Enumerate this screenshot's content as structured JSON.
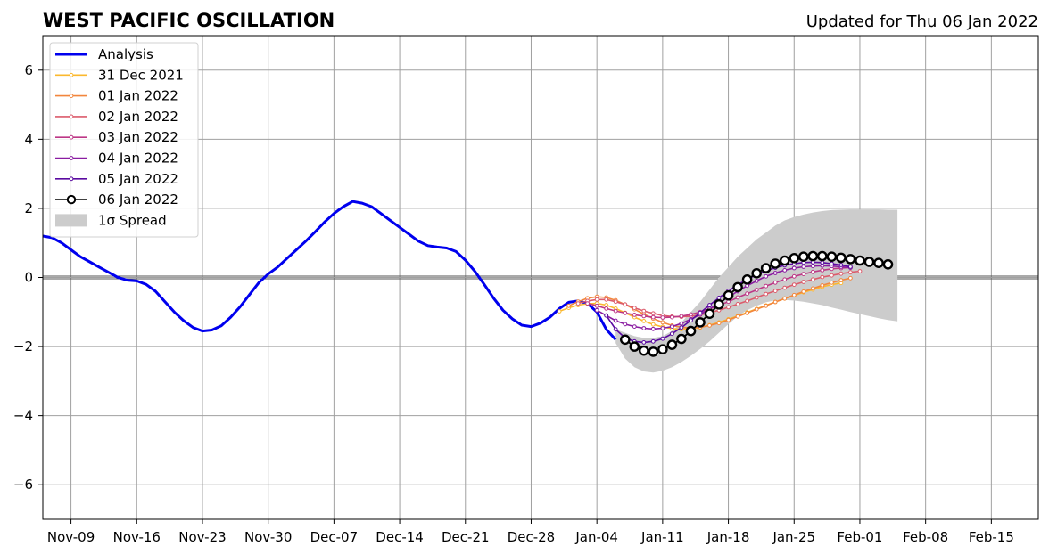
{
  "chart_data": {
    "type": "line",
    "title": "WEST PACIFIC OSCILLATION",
    "subtitle": "Updated for Thu 06 Jan 2022",
    "xlabel": "",
    "ylabel": "",
    "xlim": [
      "2021-11-06",
      "2022-02-20"
    ],
    "ylim": [
      -7,
      7
    ],
    "grid": true,
    "legend_position": "top-left",
    "x_ticks": [
      "2021-11-09",
      "2021-11-16",
      "2021-11-23",
      "2021-11-30",
      "2021-12-07",
      "2021-12-14",
      "2021-12-21",
      "2021-12-28",
      "2022-01-04",
      "2022-01-11",
      "2022-01-18",
      "2022-01-25",
      "2022-02-01",
      "2022-02-08",
      "2022-02-15"
    ],
    "x_tick_labels": [
      "Nov-09",
      "Nov-16",
      "Nov-23",
      "Nov-30",
      "Dec-07",
      "Dec-14",
      "Dec-21",
      "Dec-28",
      "Jan-04",
      "Jan-11",
      "Jan-18",
      "Jan-25",
      "Feb-01",
      "Feb-08",
      "Feb-15"
    ],
    "y_ticks": [
      -6,
      -4,
      -2,
      0,
      2,
      4,
      6
    ],
    "y_tick_labels": [
      "−6",
      "−4",
      "−2",
      "0",
      "2",
      "4",
      "6"
    ],
    "zero_line": 0,
    "analysis": {
      "name": "Analysis",
      "color": "#0000ee",
      "x": [
        "2021-11-06",
        "2021-11-07",
        "2021-11-08",
        "2021-11-09",
        "2021-11-10",
        "2021-11-11",
        "2021-11-12",
        "2021-11-13",
        "2021-11-14",
        "2021-11-15",
        "2021-11-16",
        "2021-11-17",
        "2021-11-18",
        "2021-11-19",
        "2021-11-20",
        "2021-11-21",
        "2021-11-22",
        "2021-11-23",
        "2021-11-24",
        "2021-11-25",
        "2021-11-26",
        "2021-11-27",
        "2021-11-28",
        "2021-11-29",
        "2021-11-30",
        "2021-12-01",
        "2021-12-02",
        "2021-12-03",
        "2021-12-04",
        "2021-12-05",
        "2021-12-06",
        "2021-12-07",
        "2021-12-08",
        "2021-12-09",
        "2021-12-10",
        "2021-12-11",
        "2021-12-12",
        "2021-12-13",
        "2021-12-14",
        "2021-12-15",
        "2021-12-16",
        "2021-12-17",
        "2021-12-18",
        "2021-12-19",
        "2021-12-20",
        "2021-12-21",
        "2021-12-22",
        "2021-12-23",
        "2021-12-24",
        "2021-12-25",
        "2021-12-26",
        "2021-12-27",
        "2021-12-28",
        "2021-12-29",
        "2021-12-30",
        "2021-12-31",
        "2022-01-01",
        "2022-01-02",
        "2022-01-03",
        "2022-01-04",
        "2022-01-05",
        "2022-01-06"
      ],
      "values": [
        1.2,
        1.15,
        1.0,
        0.8,
        0.6,
        0.45,
        0.3,
        0.15,
        0.0,
        -0.08,
        -0.1,
        -0.2,
        -0.4,
        -0.7,
        -1.0,
        -1.25,
        -1.45,
        -1.55,
        -1.52,
        -1.4,
        -1.15,
        -0.85,
        -0.5,
        -0.15,
        0.1,
        0.3,
        0.55,
        0.8,
        1.05,
        1.32,
        1.6,
        1.85,
        2.05,
        2.2,
        2.15,
        2.05,
        1.85,
        1.65,
        1.45,
        1.25,
        1.05,
        0.92,
        0.88,
        0.85,
        0.75,
        0.5,
        0.18,
        -0.2,
        -0.6,
        -0.95,
        -1.2,
        -1.38,
        -1.42,
        -1.32,
        -1.15,
        -0.9,
        -0.72,
        -0.68,
        -0.75,
        -1.0,
        -1.5,
        -1.8
      ]
    },
    "forecasts": [
      {
        "name": "31 Dec 2021",
        "color": "#fbb82e",
        "start": "2021-12-31",
        "values": [
          -0.98,
          -0.88,
          -0.8,
          -0.76,
          -0.75,
          -0.8,
          -0.9,
          -1.02,
          -1.15,
          -1.26,
          -1.36,
          -1.43,
          -1.48,
          -1.5,
          -1.49,
          -1.45,
          -1.38,
          -1.3,
          -1.21,
          -1.11,
          -1.01,
          -0.91,
          -0.81,
          -0.71,
          -0.61,
          -0.52,
          -0.43,
          -0.35,
          -0.27,
          -0.21,
          -0.16
        ]
      },
      {
        "name": "01 Jan 2022",
        "color": "#f2863d",
        "start": "2022-01-01",
        "values": [
          -0.82,
          -0.7,
          -0.6,
          -0.56,
          -0.58,
          -0.66,
          -0.78,
          -0.92,
          -1.06,
          -1.19,
          -1.3,
          -1.39,
          -1.44,
          -1.46,
          -1.44,
          -1.39,
          -1.32,
          -1.23,
          -1.13,
          -1.03,
          -0.92,
          -0.82,
          -0.71,
          -0.61,
          -0.51,
          -0.41,
          -0.32,
          -0.23,
          -0.15,
          -0.08,
          -0.02
        ]
      },
      {
        "name": "02 Jan 2022",
        "color": "#dc5b6b",
        "start": "2022-01-02",
        "values": [
          -0.75,
          -0.68,
          -0.64,
          -0.64,
          -0.7,
          -0.78,
          -0.88,
          -0.97,
          -1.04,
          -1.1,
          -1.13,
          -1.14,
          -1.12,
          -1.08,
          -1.02,
          -0.95,
          -0.86,
          -0.77,
          -0.68,
          -0.58,
          -0.48,
          -0.39,
          -0.3,
          -0.21,
          -0.13,
          -0.06,
          0.01,
          0.06,
          0.11,
          0.15,
          0.18
        ]
      },
      {
        "name": "03 Jan 2022",
        "color": "#bd3786",
        "start": "2022-01-03",
        "values": [
          -0.75,
          -0.82,
          -0.9,
          -0.97,
          -1.03,
          -1.08,
          -1.12,
          -1.15,
          -1.16,
          -1.15,
          -1.12,
          -1.07,
          -1.0,
          -0.91,
          -0.81,
          -0.7,
          -0.58,
          -0.47,
          -0.36,
          -0.25,
          -0.15,
          -0.06,
          0.03,
          0.1,
          0.16,
          0.21,
          0.25,
          0.27,
          0.29
        ]
      },
      {
        "name": "04 Jan 2022",
        "color": "#8a1ca1",
        "start": "2022-01-04",
        "values": [
          -0.95,
          -1.1,
          -1.25,
          -1.35,
          -1.42,
          -1.47,
          -1.49,
          -1.47,
          -1.42,
          -1.33,
          -1.21,
          -1.07,
          -0.91,
          -0.74,
          -0.57,
          -0.4,
          -0.24,
          -0.1,
          0.03,
          0.13,
          0.21,
          0.27,
          0.31,
          0.33,
          0.34,
          0.33,
          0.31,
          0.28
        ]
      },
      {
        "name": "05 Jan 2022",
        "color": "#5a0aa0",
        "start": "2022-01-05",
        "values": [
          -1.1,
          -1.5,
          -1.75,
          -1.85,
          -1.88,
          -1.85,
          -1.77,
          -1.63,
          -1.45,
          -1.24,
          -1.02,
          -0.8,
          -0.59,
          -0.39,
          -0.21,
          -0.06,
          0.08,
          0.19,
          0.28,
          0.35,
          0.4,
          0.43,
          0.44,
          0.43,
          0.4,
          0.36,
          0.31
        ]
      }
    ],
    "latest": {
      "name": "06 Jan 2022",
      "color": "#000000",
      "start": "2022-01-07",
      "values": [
        -1.8,
        -2.0,
        -2.12,
        -2.15,
        -2.08,
        -1.95,
        -1.78,
        -1.55,
        -1.3,
        -1.05,
        -0.78,
        -0.52,
        -0.28,
        -0.06,
        0.12,
        0.27,
        0.4,
        0.49,
        0.56,
        0.6,
        0.62,
        0.62,
        0.6,
        0.57,
        0.53,
        0.49,
        0.45,
        0.42,
        0.38
      ]
    },
    "spread": {
      "name": "1σ Spread",
      "color": "#cccccc",
      "start": "2022-01-06",
      "upper": [
        -1.5,
        -1.6,
        -1.7,
        -1.75,
        -1.75,
        -1.7,
        -1.55,
        -1.3,
        -1.0,
        -0.7,
        -0.35,
        0.0,
        0.3,
        0.6,
        0.85,
        1.1,
        1.3,
        1.5,
        1.65,
        1.75,
        1.82,
        1.88,
        1.92,
        1.95,
        1.96,
        1.97,
        1.97,
        1.97,
        1.97,
        1.96,
        1.96
      ],
      "lower": [
        -1.9,
        -2.35,
        -2.6,
        -2.72,
        -2.75,
        -2.7,
        -2.6,
        -2.45,
        -2.27,
        -2.07,
        -1.85,
        -1.6,
        -1.35,
        -1.12,
        -0.95,
        -0.82,
        -0.72,
        -0.66,
        -0.65,
        -0.67,
        -0.7,
        -0.75,
        -0.8,
        -0.87,
        -0.93,
        -1.0,
        -1.06,
        -1.12,
        -1.18,
        -1.23,
        -1.27
      ]
    }
  }
}
